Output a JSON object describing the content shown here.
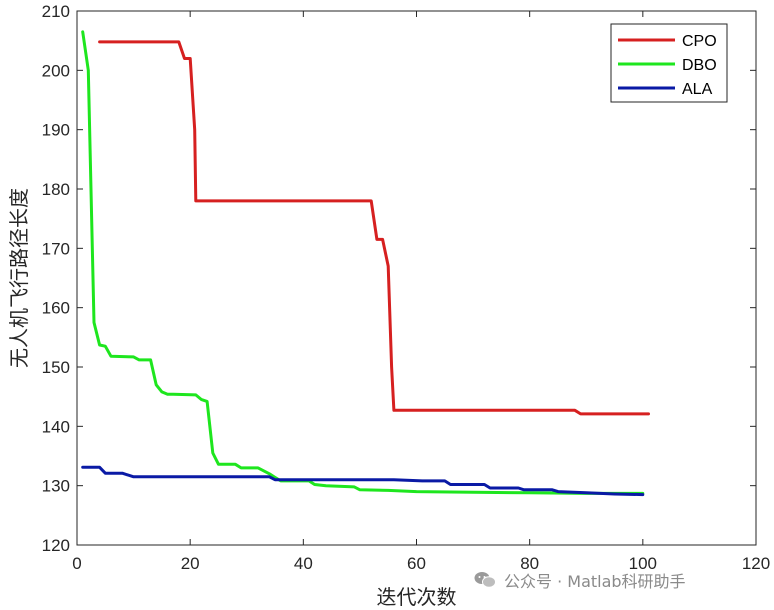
{
  "chart_data": {
    "type": "line",
    "title": "",
    "xlabel": "迭代次数",
    "ylabel": "无人机飞行路径长度",
    "xlim": [
      0,
      120
    ],
    "ylim": [
      120,
      210
    ],
    "xticks": [
      0,
      20,
      40,
      60,
      80,
      100,
      120
    ],
    "yticks": [
      120,
      130,
      140,
      150,
      160,
      170,
      180,
      190,
      200,
      210
    ],
    "grid": false,
    "legend_position": "top-right",
    "series": [
      {
        "name": "CPO",
        "color": "#d62020",
        "x": [
          4,
          18,
          19,
          20,
          20.8,
          21,
          52,
          53,
          54,
          55,
          55.6,
          56,
          88,
          89,
          101
        ],
        "y": [
          204.8,
          204.8,
          202,
          202,
          190,
          178,
          178,
          171.5,
          171.5,
          167,
          150,
          142.7,
          142.7,
          142.1,
          142.1
        ]
      },
      {
        "name": "DBO",
        "color": "#1ee61e",
        "x": [
          1,
          2,
          3,
          4,
          5,
          6,
          10,
          11,
          13,
          14,
          15,
          16,
          17,
          21,
          22,
          23,
          24,
          25,
          28,
          29,
          32,
          34,
          35,
          36,
          41,
          42,
          44,
          49,
          50,
          55,
          60,
          70,
          80,
          90,
          100
        ],
        "y": [
          206.5,
          200,
          157.5,
          153.7,
          153.5,
          151.8,
          151.7,
          151.2,
          151.2,
          147,
          145.8,
          145.4,
          145.4,
          145.3,
          144.5,
          144.2,
          135.5,
          133.6,
          133.6,
          133,
          133,
          132,
          131.4,
          130.8,
          130.8,
          130.2,
          130,
          129.8,
          129.3,
          129.2,
          129,
          128.9,
          128.8,
          128.7,
          128.7
        ]
      },
      {
        "name": "ALA",
        "color": "#0a1aa5",
        "x": [
          1,
          4,
          5,
          8,
          10,
          20,
          30,
          34,
          35,
          40,
          50,
          56,
          61,
          65,
          66,
          72,
          73,
          78,
          79,
          84,
          85,
          90,
          95,
          100
        ],
        "y": [
          133.1,
          133.1,
          132.1,
          132.1,
          131.5,
          131.5,
          131.5,
          131.5,
          131,
          131,
          131,
          131,
          130.8,
          130.8,
          130.2,
          130.2,
          129.6,
          129.6,
          129.3,
          129.3,
          129,
          128.8,
          128.6,
          128.5
        ]
      }
    ]
  },
  "watermark": {
    "text": "公众号 · Matlab科研助手",
    "icon": "wechat-icon"
  }
}
